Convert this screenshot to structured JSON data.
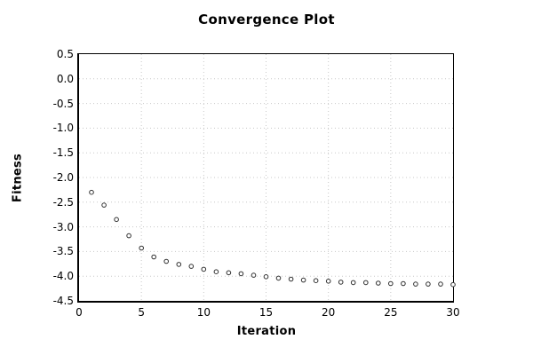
{
  "figure": {
    "background": "#ffffff"
  },
  "chart_data": {
    "type": "scatter",
    "title": "Convergence Plot",
    "xlabel": "Iteration",
    "ylabel": "Fitness",
    "x": [
      1,
      2,
      3,
      4,
      5,
      6,
      7,
      8,
      9,
      10,
      11,
      12,
      13,
      14,
      15,
      16,
      17,
      18,
      19,
      20,
      21,
      22,
      23,
      24,
      25,
      26,
      27,
      28,
      29,
      30
    ],
    "values": [
      -2.3,
      -2.56,
      -2.85,
      -3.18,
      -3.43,
      -3.61,
      -3.7,
      -3.76,
      -3.8,
      -3.86,
      -3.91,
      -3.93,
      -3.95,
      -3.98,
      -4.01,
      -4.04,
      -4.06,
      -4.08,
      -4.09,
      -4.1,
      -4.12,
      -4.13,
      -4.13,
      -4.14,
      -4.15,
      -4.15,
      -4.16,
      -4.16,
      -4.16,
      -4.17
    ],
    "xlim": [
      0,
      30
    ],
    "ylim": [
      -4.5,
      0.5
    ],
    "xticks": [
      0,
      5,
      10,
      15,
      20,
      25,
      30
    ],
    "xtick_labels": [
      "0",
      "5",
      "10",
      "15",
      "20",
      "25",
      "30"
    ],
    "yticks": [
      0.5,
      0.0,
      -0.5,
      -1.0,
      -1.5,
      -2.0,
      -2.5,
      -3.0,
      -3.5,
      -4.0,
      -4.5
    ],
    "ytick_labels": [
      "0.5",
      "0.0",
      "-0.5",
      "-1.0",
      "-1.5",
      "-2.0",
      "-2.5",
      "-3.0",
      "-3.5",
      "-4.0",
      "-4.5"
    ],
    "grid": true,
    "grid_style": "dotted",
    "legend_position": "none",
    "marker": {
      "shape": "open-circle",
      "radius": 2.3,
      "stroke": "#303030",
      "fill": "#ffffff"
    },
    "colors": {
      "grid": "#c8c8c8",
      "axis_border": "#000000",
      "text": "#000000",
      "background": "#ffffff"
    }
  }
}
